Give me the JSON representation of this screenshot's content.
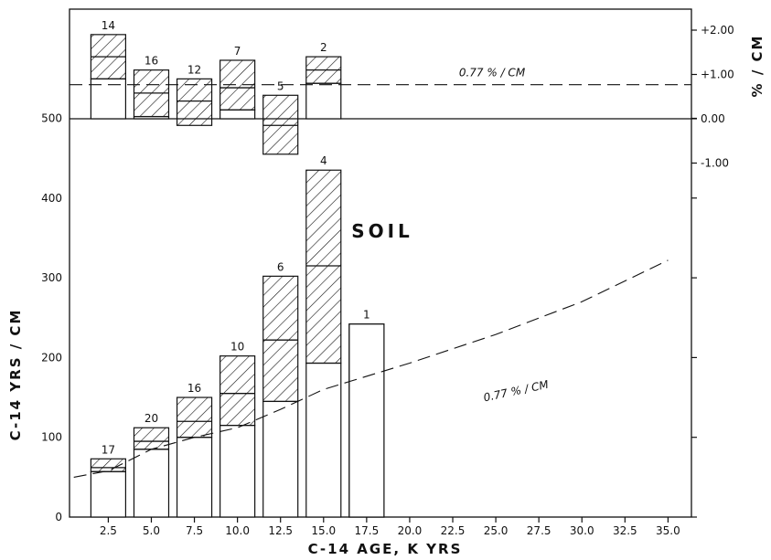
{
  "chart_data": [
    {
      "type": "bar",
      "panel": "top",
      "ylabel": "% / CM",
      "yticks": [
        "+2.00",
        "+1.00",
        "0.00",
        "-1.00"
      ],
      "ylim": [
        -1.35,
        2.65
      ],
      "reference_line": {
        "value": 0.77,
        "label": "0.77 % / CM"
      },
      "bars": [
        {
          "x": 2.5,
          "n": "14",
          "mean": 1.4,
          "low": 0.9,
          "high": 1.9
        },
        {
          "x": 5.0,
          "n": "16",
          "mean": 0.58,
          "low": 0.05,
          "high": 1.1
        },
        {
          "x": 7.5,
          "n": "12",
          "mean": 0.4,
          "low": -0.15,
          "high": 0.9
        },
        {
          "x": 10.0,
          "n": "7",
          "mean": 0.7,
          "low": 0.2,
          "high": 1.32
        },
        {
          "x": 12.5,
          "n": "5",
          "mean": -0.15,
          "low": -0.8,
          "high": 0.53
        },
        {
          "x": 15.0,
          "n": "2",
          "mean": 1.1,
          "low": 0.8,
          "high": 1.4
        }
      ]
    },
    {
      "type": "bar",
      "panel": "bottom",
      "xlabel": "C-14 AGE, K YRS",
      "ylabel": "C-14 YRS / CM",
      "xticks": [
        "2.5",
        "5.0",
        "7.5",
        "10.0",
        "12.5",
        "15.0",
        "17.5",
        "20.0",
        "22.5",
        "25.0",
        "27.5",
        "30.0",
        "32.5",
        "35.0"
      ],
      "yticks": [
        "0",
        "100",
        "200",
        "300",
        "400",
        "500"
      ],
      "ylim": [
        0,
        500
      ],
      "reference_curve": {
        "label": "0.77 % / CM",
        "points": [
          [
            0.5,
            50
          ],
          [
            2.5,
            58
          ],
          [
            5.0,
            85
          ],
          [
            7.5,
            100
          ],
          [
            10.0,
            112
          ],
          [
            12.5,
            135
          ],
          [
            15.0,
            160
          ],
          [
            20.0,
            193
          ],
          [
            25.0,
            229
          ],
          [
            30.0,
            270
          ],
          [
            35.0,
            322
          ]
        ]
      },
      "bars": [
        {
          "x": 2.5,
          "n": "17",
          "mean": 62,
          "low": 57,
          "high": 73
        },
        {
          "x": 5.0,
          "n": "20",
          "mean": 95,
          "low": 85,
          "high": 112
        },
        {
          "x": 7.5,
          "n": "16",
          "mean": 120,
          "low": 100,
          "high": 150
        },
        {
          "x": 10.0,
          "n": "10",
          "mean": 155,
          "low": 115,
          "high": 202
        },
        {
          "x": 12.5,
          "n": "6",
          "mean": 222,
          "low": 145,
          "high": 302
        },
        {
          "x": 15.0,
          "n": "4",
          "mean": 315,
          "low": 193,
          "high": 435
        },
        {
          "x": 17.5,
          "n": "1",
          "mean": 242,
          "low": 242,
          "high": 242
        }
      ]
    }
  ],
  "panel_label": "SOIL"
}
